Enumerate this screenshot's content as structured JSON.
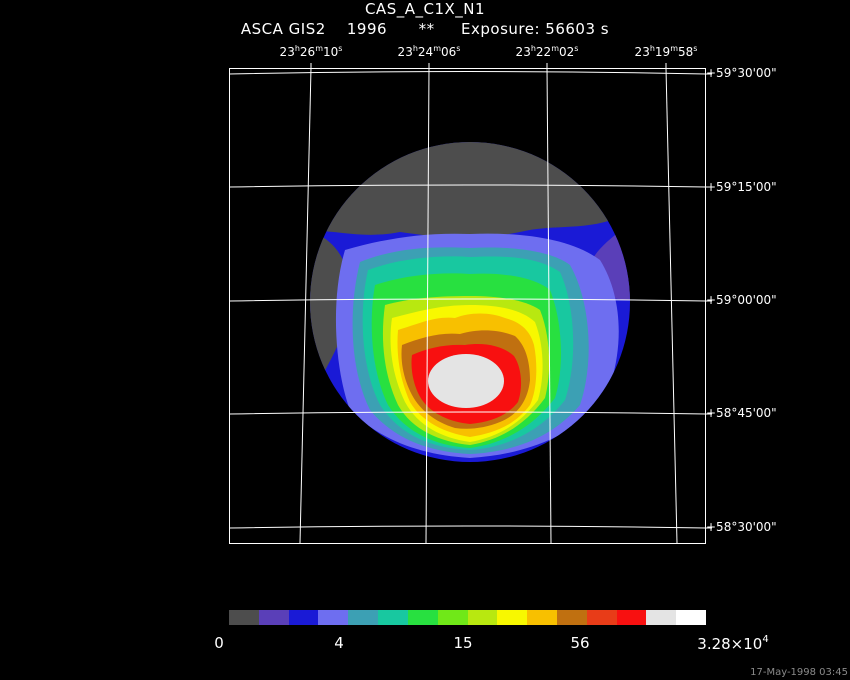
{
  "header": {
    "title": "CAS_A_C1X_N1",
    "instrument": "ASCA GIS2",
    "year": "1996",
    "marker": "**",
    "exposure": "Exposure: 56603 s"
  },
  "ra_labels": [
    {
      "h": "23",
      "hs": "h",
      "m": "26",
      "ms": "m",
      "s": "10",
      "ss": "s"
    },
    {
      "h": "23",
      "hs": "h",
      "m": "24",
      "ms": "m",
      "s": "06",
      "ss": "s"
    },
    {
      "h": "23",
      "hs": "h",
      "m": "22",
      "ms": "m",
      "s": "02",
      "ss": "s"
    },
    {
      "h": "23",
      "hs": "h",
      "m": "19",
      "ms": "m",
      "s": "58",
      "ss": "s"
    }
  ],
  "dec_labels": [
    "+59°30'00\"",
    "+59°15'00\"",
    "+59°00'00\"",
    "+58°45'00\"",
    "+58°30'00\""
  ],
  "colorbar": {
    "colors": [
      "#4d4d4d",
      "#5a3fb8",
      "#1a1ad6",
      "#6e6ef0",
      "#3ca0b4",
      "#18c8a0",
      "#28e040",
      "#70e818",
      "#b8e810",
      "#f8f800",
      "#f8c000",
      "#c07010",
      "#e83c18",
      "#f81010",
      "#e4e4e4",
      "#ffffff"
    ],
    "labels": [
      "0",
      "4",
      "15",
      "56"
    ],
    "max_mantissa": "3.28×10",
    "max_exponent": "4"
  },
  "timestamp": "17-May-1998 03:45"
}
